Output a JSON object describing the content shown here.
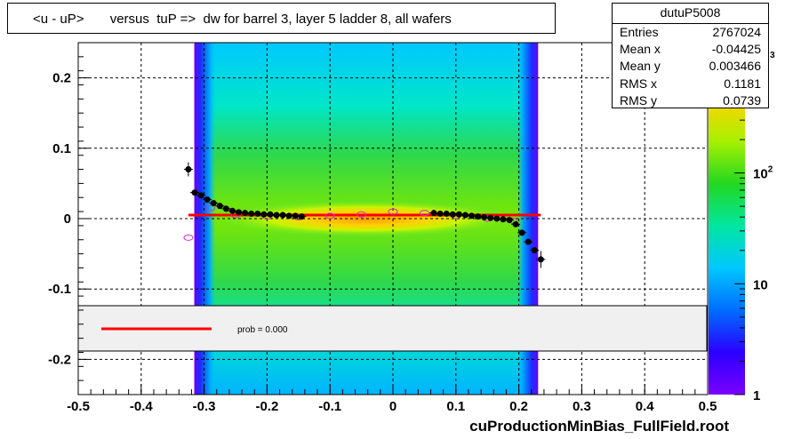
{
  "title": "<u - uP>       versus  tuP =>  dw for barrel 3, layer 5 ladder 8, all wafers",
  "footer": "cuProductionMinBias_FullField.root",
  "stats": {
    "name": "dutuP5008",
    "rows": [
      {
        "label": "Entries",
        "value": "2767024"
      },
      {
        "label": "Mean x",
        "value": "-0.04425"
      },
      {
        "label": "Mean y",
        "value": "0.003466"
      },
      {
        "label": "RMS x",
        "value": "0.1181"
      },
      {
        "label": "RMS y",
        "value": "0.0739"
      }
    ]
  },
  "legend": {
    "text": "prob = 0.000"
  },
  "colors": {
    "fit": "#ff0000",
    "profile": "#000000",
    "profile2": "#cc33cc"
  },
  "chart_data": {
    "type": "heatmap",
    "x_ticks": [
      "-0.5",
      "-0.4",
      "-0.3",
      "-0.2",
      "-0.1",
      "0",
      "0.1",
      "0.2",
      "0.3",
      "0.4",
      "0.5"
    ],
    "y_ticks": [
      "0.2",
      "0.1",
      "0",
      "-0.1",
      "-0.2"
    ],
    "xlim": [
      -0.5,
      0.5
    ],
    "ylim": [
      -0.25,
      0.25
    ],
    "grid": true,
    "z_scale": "log",
    "z_ticks": [
      {
        "base": "1",
        "exp": ""
      },
      {
        "base": "10",
        "exp": ""
      },
      {
        "base": "10",
        "exp": "2"
      },
      {
        "base": "",
        "exp": "3"
      }
    ],
    "occupied_x_range": [
      -0.31,
      0.225
    ],
    "fit_line": {
      "x": [
        -0.325,
        0.235
      ],
      "y": [
        0.005,
        0.005
      ]
    },
    "profile_points": [
      {
        "x": -0.325,
        "y": 0.07,
        "err": 0.01
      },
      {
        "x": -0.315,
        "y": 0.037
      },
      {
        "x": -0.305,
        "y": 0.033
      },
      {
        "x": -0.295,
        "y": 0.027
      },
      {
        "x": -0.285,
        "y": 0.022
      },
      {
        "x": -0.275,
        "y": 0.018
      },
      {
        "x": -0.265,
        "y": 0.014
      },
      {
        "x": -0.255,
        "y": 0.011
      },
      {
        "x": -0.245,
        "y": 0.009
      },
      {
        "x": -0.235,
        "y": 0.008
      },
      {
        "x": -0.225,
        "y": 0.007
      },
      {
        "x": -0.215,
        "y": 0.007
      },
      {
        "x": -0.205,
        "y": 0.006
      },
      {
        "x": -0.195,
        "y": 0.006
      },
      {
        "x": -0.185,
        "y": 0.005
      },
      {
        "x": -0.175,
        "y": 0.005
      },
      {
        "x": -0.165,
        "y": 0.004
      },
      {
        "x": -0.155,
        "y": 0.004
      },
      {
        "x": -0.145,
        "y": 0.003
      },
      {
        "x": 0.065,
        "y": 0.008
      },
      {
        "x": 0.075,
        "y": 0.007
      },
      {
        "x": 0.085,
        "y": 0.007
      },
      {
        "x": 0.095,
        "y": 0.006
      },
      {
        "x": 0.105,
        "y": 0.006
      },
      {
        "x": 0.115,
        "y": 0.005
      },
      {
        "x": 0.125,
        "y": 0.004
      },
      {
        "x": 0.135,
        "y": 0.003
      },
      {
        "x": 0.145,
        "y": 0.002
      },
      {
        "x": 0.155,
        "y": 0.001
      },
      {
        "x": 0.165,
        "y": 0.0
      },
      {
        "x": 0.175,
        "y": -0.001
      },
      {
        "x": 0.185,
        "y": -0.002
      },
      {
        "x": 0.195,
        "y": -0.008
      },
      {
        "x": 0.205,
        "y": -0.02
      },
      {
        "x": 0.215,
        "y": -0.033
      },
      {
        "x": 0.225,
        "y": -0.045
      },
      {
        "x": 0.235,
        "y": -0.058,
        "err": 0.012
      }
    ],
    "profile2_points": [
      {
        "x": -0.325,
        "y": -0.027
      },
      {
        "x": -0.29,
        "y": 0.015
      },
      {
        "x": -0.25,
        "y": 0.005
      },
      {
        "x": -0.2,
        "y": 0.003
      },
      {
        "x": -0.15,
        "y": 0.002
      },
      {
        "x": -0.1,
        "y": 0.004
      },
      {
        "x": -0.05,
        "y": 0.006
      },
      {
        "x": 0.0,
        "y": 0.01
      },
      {
        "x": 0.05,
        "y": 0.008
      },
      {
        "x": 0.1,
        "y": 0.004
      },
      {
        "x": 0.15,
        "y": 0.0
      },
      {
        "x": 0.19,
        "y": -0.003
      }
    ]
  }
}
